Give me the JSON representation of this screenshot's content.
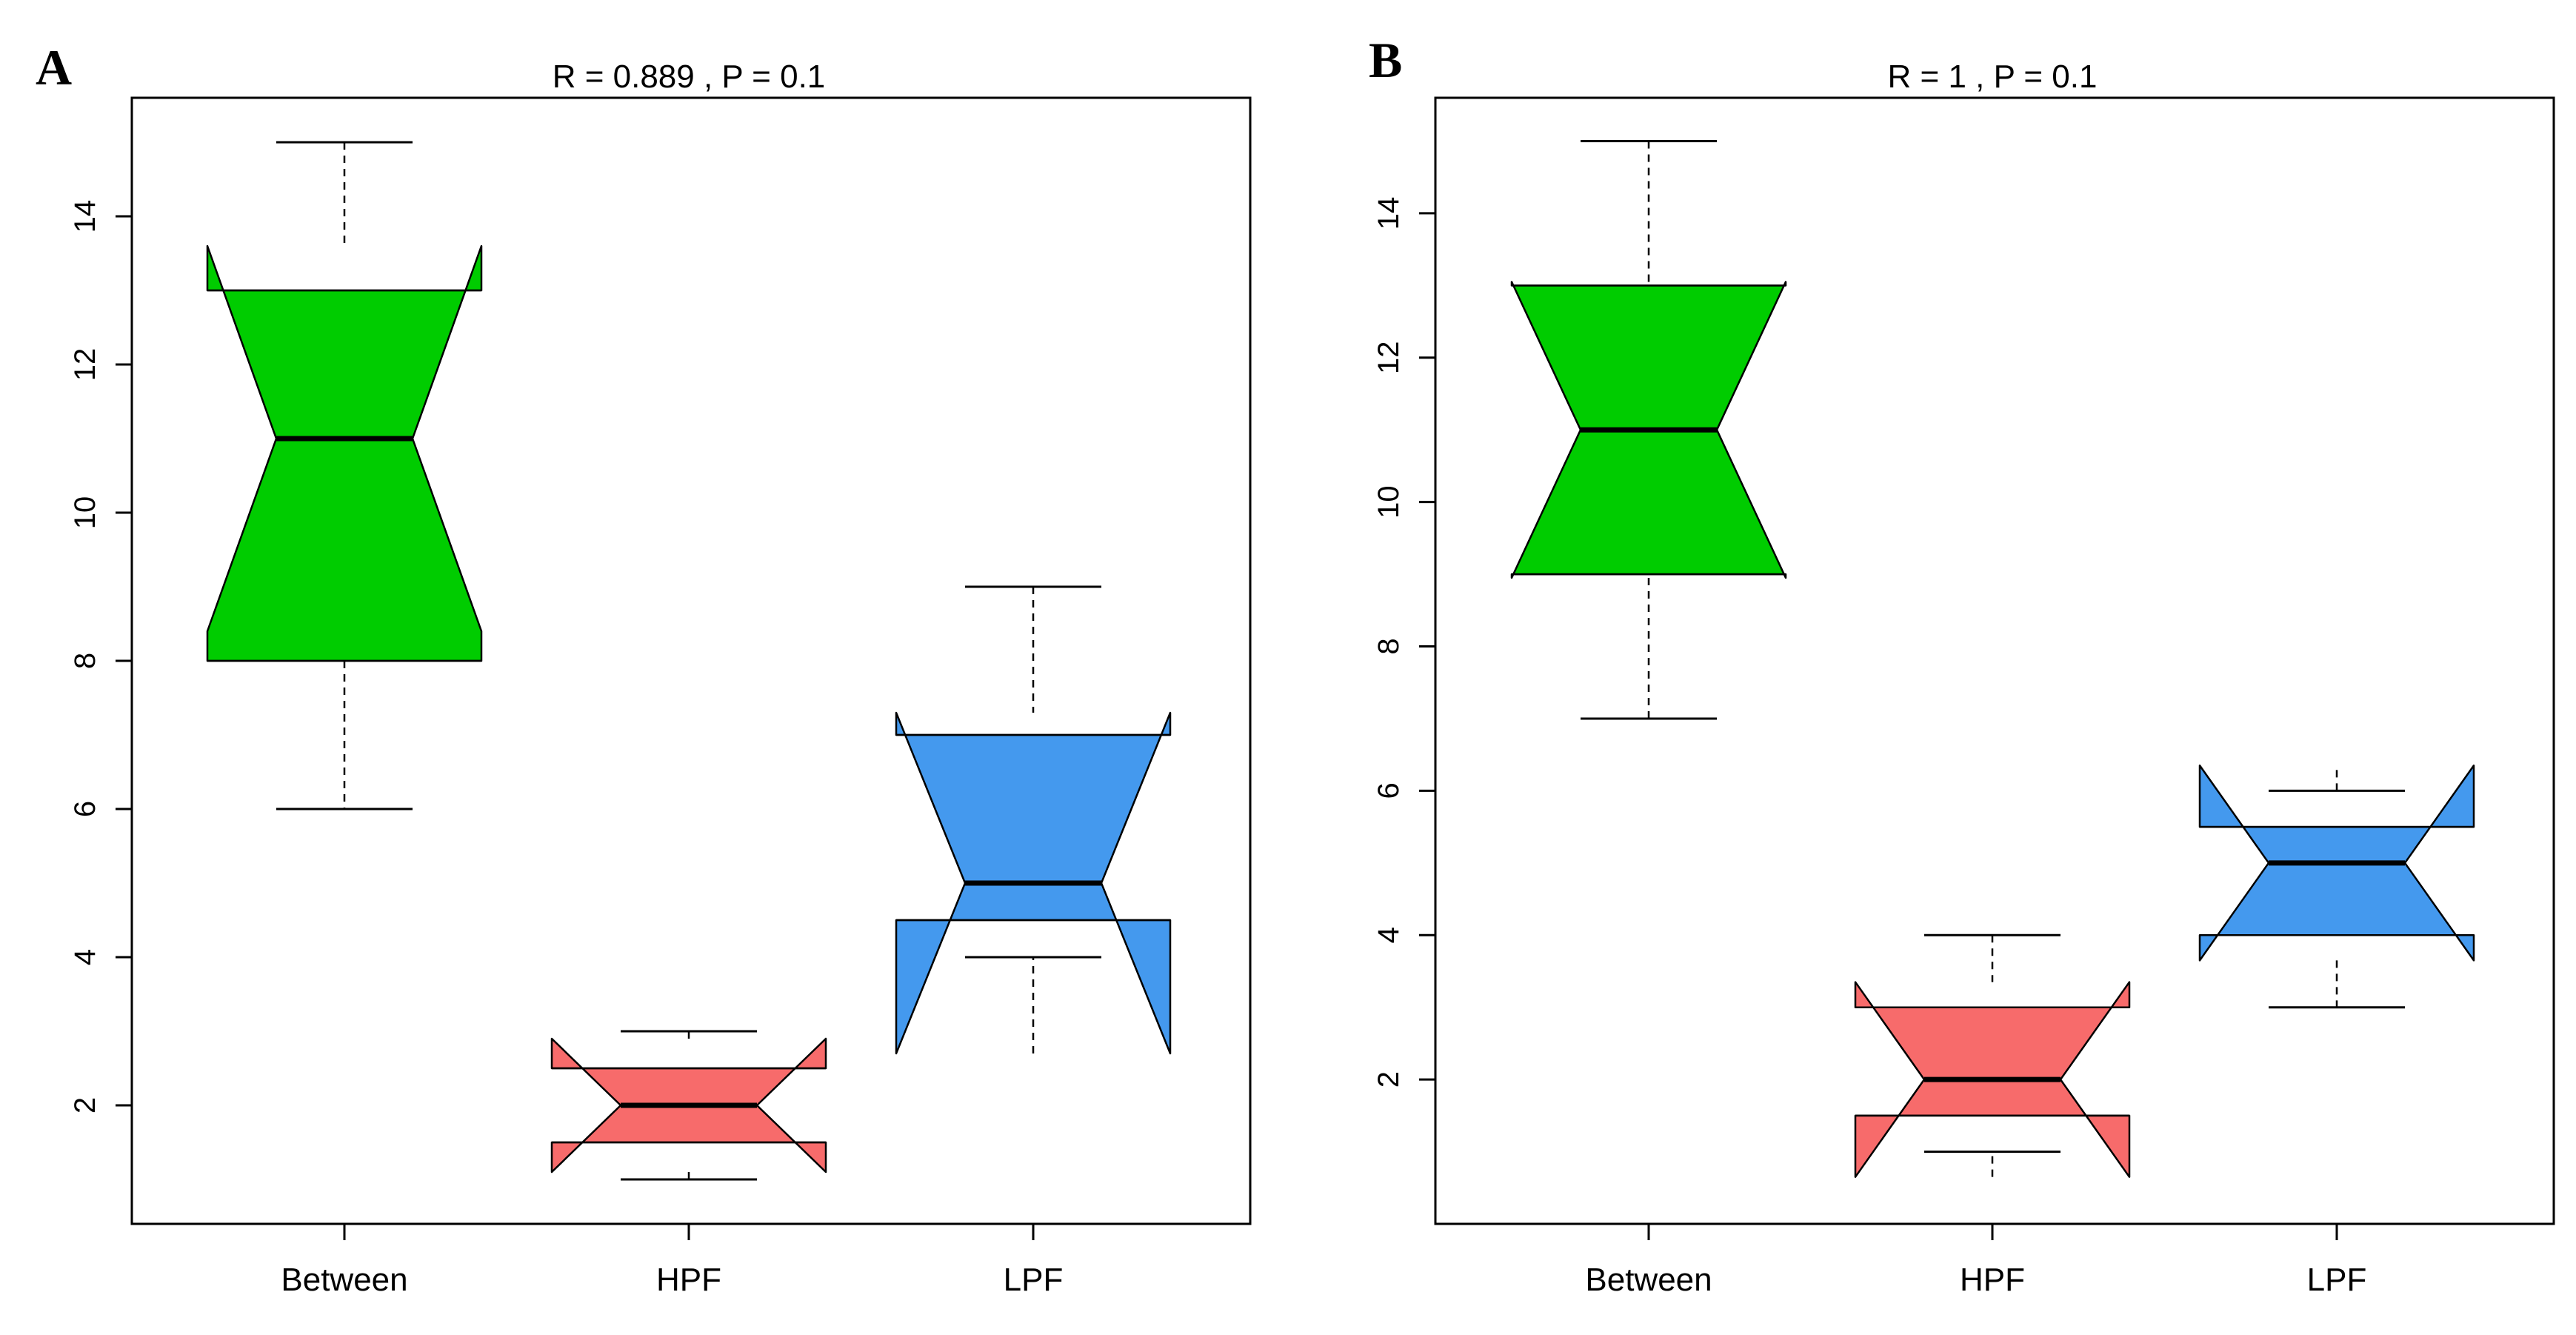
{
  "chart_data": [
    {
      "type": "boxplot",
      "panel_label": "A",
      "title": "R = 0.889 , P = 0.1",
      "categories": [
        "Between",
        "HPF",
        "LPF"
      ],
      "ylim": [
        0.4,
        15.6
      ],
      "yticks": [
        2,
        4,
        6,
        8,
        10,
        12,
        14
      ],
      "notched": true,
      "grid": false,
      "boxes": [
        {
          "category": "Between",
          "color": "#00cc00",
          "whisker_low": 6,
          "q1": 8,
          "median": 11,
          "q3": 13,
          "whisker_high": 15,
          "notch_low": 8.4,
          "notch_high": 13.6
        },
        {
          "category": "HPF",
          "color": "#f76b6b",
          "whisker_low": 1,
          "q1": 1.5,
          "median": 2,
          "q3": 2.5,
          "whisker_high": 3,
          "notch_low": 1.1,
          "notch_high": 2.9
        },
        {
          "category": "LPF",
          "color": "#4499ee",
          "whisker_low": 4,
          "q1": 4.5,
          "median": 5,
          "q3": 7,
          "whisker_high": 9,
          "notch_low": 2.7,
          "notch_high": 7.3
        }
      ]
    },
    {
      "type": "boxplot",
      "panel_label": "B",
      "title": "R = 1 , P = 0.1",
      "categories": [
        "Between",
        "HPF",
        "LPF"
      ],
      "ylim": [
        0,
        15.6
      ],
      "yticks": [
        2,
        4,
        6,
        8,
        10,
        12,
        14
      ],
      "notched": true,
      "grid": false,
      "boxes": [
        {
          "category": "Between",
          "color": "#00cc00",
          "whisker_low": 7,
          "q1": 9,
          "median": 11,
          "q3": 13,
          "whisker_high": 15,
          "notch_low": 8.95,
          "notch_high": 13.05
        },
        {
          "category": "HPF",
          "color": "#f76b6b",
          "whisker_low": 1,
          "q1": 1.5,
          "median": 2,
          "q3": 3,
          "whisker_high": 4,
          "notch_low": 0.65,
          "notch_high": 3.35
        },
        {
          "category": "LPF",
          "color": "#4499ee",
          "whisker_low": 3,
          "q1": 4,
          "median": 5,
          "q3": 5.5,
          "whisker_high": 6,
          "notch_low": 3.65,
          "notch_high": 6.35
        }
      ]
    }
  ]
}
